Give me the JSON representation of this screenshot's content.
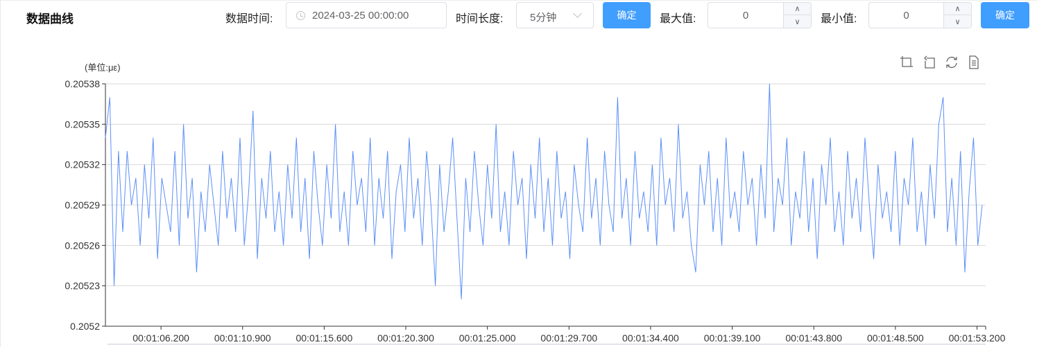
{
  "header": {
    "title": "数据曲线",
    "data_time_label": "数据时间:",
    "data_time_value": "2024-03-25 00:00:00",
    "duration_label": "时间长度:",
    "duration_value": "5分钟",
    "confirm_label_1": "确定",
    "max_label": "最大值:",
    "max_value": "0",
    "min_label": "最小值:",
    "min_value": "0",
    "confirm_label_2": "确定"
  },
  "toolbox": [
    "zoom-icon",
    "zoom-reset-icon",
    "restore-icon",
    "data-view-icon"
  ],
  "colors": {
    "accent": "#409eff",
    "series": "#5b8ff9"
  },
  "chart_data": {
    "type": "line",
    "unit_label": "(单位:με)",
    "ylim": [
      0.2052,
      0.20538
    ],
    "y_ticks": [
      "0.2052",
      "0.20523",
      "0.20526",
      "0.20529",
      "0.20532",
      "0.20535",
      "0.20538"
    ],
    "x_ticks": [
      "00:01:06.200",
      "00:01:10.900",
      "00:01:15.600",
      "00:01:20.300",
      "00:01:25.000",
      "00:01:29.700",
      "00:01:34.400",
      "00:01:39.100",
      "00:01:43.800",
      "00:01:48.500",
      "00:01:53.200"
    ],
    "xlim": [
      "00:01:03.000",
      "00:01:53.700"
    ],
    "x_start": "00:01:03.000",
    "x_interval_s": 0.25,
    "grid": true,
    "values": [
      0.20534,
      0.20537,
      0.20523,
      0.20533,
      0.20527,
      0.20533,
      0.20529,
      0.20531,
      0.20526,
      0.20532,
      0.20528,
      0.20534,
      0.20525,
      0.20531,
      0.20529,
      0.20527,
      0.20533,
      0.20526,
      0.20535,
      0.20528,
      0.20531,
      0.20524,
      0.2053,
      0.20527,
      0.20532,
      0.20529,
      0.20526,
      0.20533,
      0.20528,
      0.20531,
      0.20527,
      0.20534,
      0.20526,
      0.2053,
      0.20536,
      0.20525,
      0.20531,
      0.20528,
      0.20533,
      0.20527,
      0.2053,
      0.20526,
      0.20532,
      0.20528,
      0.20534,
      0.20527,
      0.20531,
      0.20525,
      0.20533,
      0.20529,
      0.20526,
      0.20532,
      0.20528,
      0.20535,
      0.20527,
      0.2053,
      0.20526,
      0.20533,
      0.20529,
      0.20531,
      0.20527,
      0.20534,
      0.20526,
      0.20531,
      0.20528,
      0.20533,
      0.20525,
      0.2053,
      0.20532,
      0.20527,
      0.20534,
      0.20528,
      0.20531,
      0.20526,
      0.20533,
      0.20529,
      0.20523,
      0.20532,
      0.20527,
      0.2053,
      0.20534,
      0.20528,
      0.20522,
      0.20531,
      0.20527,
      0.20533,
      0.20529,
      0.20526,
      0.20532,
      0.20528,
      0.20535,
      0.20527,
      0.2053,
      0.20526,
      0.20533,
      0.20529,
      0.20531,
      0.20525,
      0.20532,
      0.20528,
      0.20534,
      0.20527,
      0.20531,
      0.20526,
      0.20533,
      0.20528,
      0.2053,
      0.20525,
      0.20532,
      0.20529,
      0.20527,
      0.20534,
      0.20528,
      0.20531,
      0.20526,
      0.20533,
      0.20529,
      0.20527,
      0.20537,
      0.20528,
      0.20531,
      0.20526,
      0.20533,
      0.20528,
      0.2053,
      0.20527,
      0.20532,
      0.20526,
      0.20534,
      0.20529,
      0.20531,
      0.20527,
      0.20535,
      0.20528,
      0.2053,
      0.20526,
      0.20524,
      0.20532,
      0.20529,
      0.20533,
      0.20527,
      0.20531,
      0.20526,
      0.20534,
      0.20528,
      0.2053,
      0.20527,
      0.20533,
      0.20529,
      0.20531,
      0.20526,
      0.20532,
      0.20528,
      0.20538,
      0.20527,
      0.20531,
      0.20529,
      0.20534,
      0.20526,
      0.2053,
      0.20528,
      0.20533,
      0.20527,
      0.20531,
      0.20525,
      0.20532,
      0.20529,
      0.20534,
      0.20527,
      0.2053,
      0.20526,
      0.20533,
      0.20528,
      0.20531,
      0.20527,
      0.20534,
      0.20529,
      0.20525,
      0.20532,
      0.20528,
      0.2053,
      0.20527,
      0.20533,
      0.20526,
      0.20531,
      0.20529,
      0.20534,
      0.20527,
      0.2053,
      0.20526,
      0.20532,
      0.20528,
      0.20535,
      0.20537,
      0.20527,
      0.20531,
      0.20526,
      0.20533,
      0.20524,
      0.2053,
      0.20534,
      0.20526,
      0.20529
    ]
  }
}
